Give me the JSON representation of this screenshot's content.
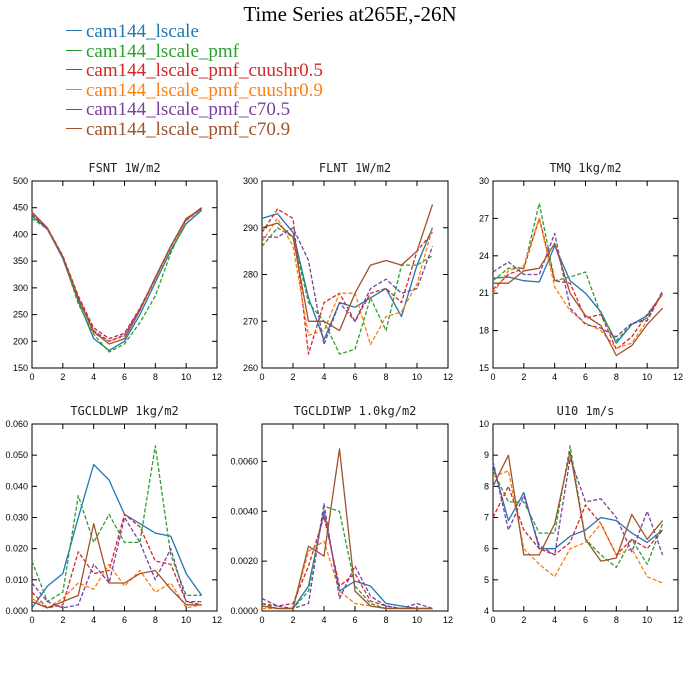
{
  "title": "Time Series at265E,-26N",
  "legend": [
    {
      "label": "cam144_lscale",
      "color": "#1f77b4"
    },
    {
      "label": "cam144_lscale_pmf",
      "color": "#2ca02c"
    },
    {
      "label": "cam144_lscale_pmf_cuushr0.5",
      "color": "#d62728"
    },
    {
      "label": "cam144_lscale_pmf_cuushr0.9",
      "color": "#ff7f0e"
    },
    {
      "label": "cam144_lscale_pmf_c70.5",
      "color": "#7b3fa0"
    },
    {
      "label": "cam144_lscale_pmf_c70.9",
      "color": "#a0522d"
    }
  ],
  "chart_data": [
    {
      "type": "line",
      "title": "FSNT   1W/m2",
      "xlim": [
        0,
        12
      ],
      "ylim": [
        150,
        500
      ],
      "xticks": [
        0,
        2,
        4,
        6,
        8,
        10,
        12
      ],
      "yticks": [
        150,
        200,
        250,
        300,
        350,
        400,
        450,
        500
      ],
      "ytick_labels": [
        "150",
        "200",
        "250",
        "300",
        "350",
        "400",
        "450",
        "500"
      ],
      "x": [
        0,
        1,
        2,
        3,
        4,
        5,
        6,
        7,
        8,
        9,
        10,
        11
      ],
      "series": [
        {
          "name": "cam144_lscale",
          "color": "#1f77b4",
          "dashed": false,
          "values": [
            435,
            410,
            355,
            275,
            205,
            183,
            200,
            250,
            310,
            370,
            420,
            445
          ]
        },
        {
          "name": "cam144_lscale_pmf",
          "color": "#2ca02c",
          "dashed": true,
          "values": [
            430,
            410,
            358,
            270,
            213,
            180,
            195,
            235,
            285,
            365,
            428,
            448
          ]
        },
        {
          "name": "cam144_lscale_pmf_cuushr0.5",
          "color": "#d62728",
          "dashed": true,
          "values": [
            440,
            412,
            360,
            285,
            225,
            205,
            215,
            262,
            318,
            378,
            428,
            450
          ]
        },
        {
          "name": "cam144_lscale_pmf_cuushr0.9",
          "color": "#ff7f0e",
          "dashed": true,
          "values": [
            438,
            410,
            358,
            280,
            215,
            200,
            210,
            258,
            315,
            375,
            425,
            448
          ]
        },
        {
          "name": "cam144_lscale_pmf_c70.5",
          "color": "#7b3fa0",
          "dashed": true,
          "values": [
            437,
            410,
            358,
            282,
            220,
            200,
            212,
            260,
            318,
            378,
            428,
            450
          ]
        },
        {
          "name": "cam144_lscale_pmf_c70.9",
          "color": "#a0522d",
          "dashed": false,
          "values": [
            442,
            412,
            358,
            280,
            218,
            195,
            205,
            258,
            320,
            378,
            430,
            448
          ]
        }
      ]
    },
    {
      "type": "line",
      "title": "FLNT   1W/m2",
      "xlim": [
        0,
        12
      ],
      "ylim": [
        260,
        300
      ],
      "xticks": [
        0,
        2,
        4,
        6,
        8,
        10,
        12
      ],
      "yticks": [
        260,
        270,
        280,
        290,
        300
      ],
      "ytick_labels": [
        "260",
        "270",
        "280",
        "290",
        "300"
      ],
      "x": [
        0,
        1,
        2,
        3,
        4,
        5,
        6,
        7,
        8,
        9,
        10,
        11
      ],
      "series": [
        {
          "name": "cam144_lscale",
          "color": "#1f77b4",
          "dashed": false,
          "values": [
            292,
            293,
            289,
            275,
            266,
            274,
            273,
            275,
            277,
            271,
            282,
            290
          ]
        },
        {
          "name": "cam144_lscale_pmf",
          "color": "#2ca02c",
          "dashed": true,
          "values": [
            286,
            290,
            288,
            274,
            270,
            263,
            264,
            275,
            268,
            282,
            282,
            284
          ]
        },
        {
          "name": "cam144_lscale_pmf_cuushr0.5",
          "color": "#d62728",
          "dashed": true,
          "values": [
            289,
            294,
            292,
            263,
            274,
            276,
            270,
            276,
            277,
            274,
            285,
            289
          ]
        },
        {
          "name": "cam144_lscale_pmf_cuushr0.9",
          "color": "#ff7f0e",
          "dashed": true,
          "values": [
            287,
            292,
            286,
            267,
            268,
            276,
            276,
            265,
            271,
            272,
            278,
            290
          ]
        },
        {
          "name": "cam144_lscale_pmf_c70.5",
          "color": "#7b3fa0",
          "dashed": true,
          "values": [
            288,
            288,
            290,
            283,
            265,
            274,
            270,
            277,
            279,
            276,
            277,
            286
          ]
        },
        {
          "name": "cam144_lscale_pmf_c70.9",
          "color": "#a0522d",
          "dashed": false,
          "values": [
            290,
            291,
            288,
            270,
            270,
            268,
            276,
            282,
            283,
            282,
            285,
            295
          ]
        }
      ]
    },
    {
      "type": "line",
      "title": "TMQ   1kg/m2",
      "xlim": [
        0,
        12
      ],
      "ylim": [
        15,
        30
      ],
      "xticks": [
        0,
        2,
        4,
        6,
        8,
        10,
        12
      ],
      "yticks": [
        15,
        18,
        21,
        24,
        27,
        30
      ],
      "ytick_labels": [
        "15",
        "18",
        "21",
        "24",
        "27",
        "30"
      ],
      "x": [
        0,
        1,
        2,
        3,
        4,
        5,
        6,
        7,
        8,
        9,
        10,
        11
      ],
      "series": [
        {
          "name": "cam144_lscale",
          "color": "#1f77b4",
          "dashed": false,
          "values": [
            22.2,
            22.3,
            22.0,
            21.9,
            24.8,
            22.0,
            21.0,
            19.5,
            17.0,
            18.5,
            19.2,
            21.0
          ]
        },
        {
          "name": "cam144_lscale_pmf",
          "color": "#2ca02c",
          "dashed": true,
          "values": [
            22.0,
            23.0,
            23.0,
            28.2,
            22.0,
            22.3,
            22.7,
            19.3,
            17.2,
            18.5,
            19.0,
            21.0
          ]
        },
        {
          "name": "cam144_lscale_pmf_cuushr0.5",
          "color": "#d62728",
          "dashed": true,
          "values": [
            21.3,
            22.5,
            23.0,
            27.0,
            22.0,
            21.8,
            19.0,
            19.3,
            16.5,
            17.5,
            19.3,
            20.9
          ]
        },
        {
          "name": "cam144_lscale_pmf_cuushr0.9",
          "color": "#ff7f0e",
          "dashed": true,
          "values": [
            21.0,
            22.8,
            23.2,
            27.0,
            21.5,
            19.6,
            18.6,
            18.0,
            16.6,
            17.0,
            18.8,
            21.0
          ]
        },
        {
          "name": "cam144_lscale_pmf_c70.5",
          "color": "#7b3fa0",
          "dashed": true,
          "values": [
            22.7,
            23.5,
            22.5,
            22.5,
            25.8,
            19.8,
            18.5,
            18.2,
            17.5,
            18.6,
            18.8,
            21.2
          ]
        },
        {
          "name": "cam144_lscale_pmf_c70.9",
          "color": "#a0522d",
          "dashed": false,
          "values": [
            21.8,
            21.8,
            22.8,
            23.0,
            25.0,
            21.0,
            19.2,
            18.4,
            16.0,
            16.8,
            18.5,
            19.8
          ]
        }
      ]
    },
    {
      "type": "line",
      "title": "TGCLDLWP   1kg/m2",
      "xlim": [
        0,
        12
      ],
      "ylim": [
        0,
        0.06
      ],
      "xticks": [
        0,
        2,
        4,
        6,
        8,
        10,
        12
      ],
      "yticks": [
        0,
        0.01,
        0.02,
        0.03,
        0.04,
        0.05,
        0.06
      ],
      "ytick_labels": [
        "0.000",
        "0.010",
        "0.020",
        "0.030",
        "0.040",
        "0.050",
        "0.060"
      ],
      "x": [
        0,
        1,
        2,
        3,
        4,
        5,
        6,
        7,
        8,
        9,
        10,
        11
      ],
      "series": [
        {
          "name": "cam144_lscale",
          "color": "#1f77b4",
          "dashed": false,
          "values": [
            0.001,
            0.008,
            0.012,
            0.03,
            0.047,
            0.042,
            0.031,
            0.028,
            0.025,
            0.024,
            0.012,
            0.005
          ]
        },
        {
          "name": "cam144_lscale_pmf",
          "color": "#2ca02c",
          "dashed": true,
          "values": [
            0.016,
            0.003,
            0.006,
            0.037,
            0.022,
            0.031,
            0.022,
            0.022,
            0.053,
            0.018,
            0.005,
            0.005
          ]
        },
        {
          "name": "cam144_lscale_pmf_cuushr0.5",
          "color": "#d62728",
          "dashed": true,
          "values": [
            0.006,
            0.001,
            0.002,
            0.019,
            0.012,
            0.013,
            0.031,
            0.027,
            0.016,
            0.015,
            0.003,
            0.003
          ]
        },
        {
          "name": "cam144_lscale_pmf_cuushr0.9",
          "color": "#ff7f0e",
          "dashed": true,
          "values": [
            0.004,
            0.001,
            0.004,
            0.009,
            0.007,
            0.015,
            0.008,
            0.013,
            0.006,
            0.009,
            0.001,
            0.002
          ]
        },
        {
          "name": "cam144_lscale_pmf_c70.5",
          "color": "#7b3fa0",
          "dashed": true,
          "values": [
            0.009,
            0.003,
            0.001,
            0.002,
            0.015,
            0.009,
            0.03,
            0.022,
            0.01,
            0.02,
            0.003,
            0.002
          ]
        },
        {
          "name": "cam144_lscale_pmf_c70.9",
          "color": "#a0522d",
          "dashed": false,
          "values": [
            0.003,
            0.001,
            0.003,
            0.005,
            0.028,
            0.009,
            0.009,
            0.012,
            0.013,
            0.007,
            0.002,
            0.002
          ]
        }
      ]
    },
    {
      "type": "line",
      "title": "TGCLDIWP   1.0kg/m2",
      "xlim": [
        0,
        12
      ],
      "ylim": [
        0,
        0.0075
      ],
      "xticks": [
        0,
        2,
        4,
        6,
        8,
        10,
        12
      ],
      "yticks": [
        0,
        0.002,
        0.004,
        0.006
      ],
      "ytick_labels": [
        "0.0000",
        "0.0020",
        "0.0040",
        "0.0060"
      ],
      "x": [
        0,
        1,
        2,
        3,
        4,
        5,
        6,
        7,
        8,
        9,
        10,
        11
      ],
      "series": [
        {
          "name": "cam144_lscale",
          "color": "#1f77b4",
          "dashed": false,
          "values": [
            0.0002,
            0.0001,
            0.0001,
            0.001,
            0.004,
            0.0008,
            0.0012,
            0.001,
            0.0003,
            0.0002,
            0.0001,
            0.0001
          ]
        },
        {
          "name": "cam144_lscale_pmf",
          "color": "#2ca02c",
          "dashed": true,
          "values": [
            0.0003,
            0.0001,
            0.0001,
            0.0008,
            0.0042,
            0.004,
            0.001,
            0.0003,
            0.0001,
            0.0001,
            0.0001,
            0.0001
          ]
        },
        {
          "name": "cam144_lscale_pmf_cuushr0.5",
          "color": "#d62728",
          "dashed": true,
          "values": [
            0.0003,
            0.0002,
            0.0003,
            0.0018,
            0.0038,
            0.001,
            0.0015,
            0.0004,
            0.0002,
            0.0001,
            0.0001,
            0.0001
          ]
        },
        {
          "name": "cam144_lscale_pmf_cuushr0.9",
          "color": "#ff7f0e",
          "dashed": true,
          "values": [
            0.0001,
            0.0001,
            0.0001,
            0.0024,
            0.0028,
            0.0008,
            0.0003,
            0.0002,
            0.0001,
            0.0001,
            0.0001,
            0.0001
          ]
        },
        {
          "name": "cam144_lscale_pmf_c70.5",
          "color": "#7b3fa0",
          "dashed": true,
          "values": [
            0.0005,
            0.0002,
            0.0001,
            0.0003,
            0.0043,
            0.0005,
            0.0018,
            0.0006,
            0.0002,
            0.0001,
            0.0003,
            0.0001
          ]
        },
        {
          "name": "cam144_lscale_pmf_c70.9",
          "color": "#a0522d",
          "dashed": false,
          "values": [
            0.0002,
            0.0001,
            0.0001,
            0.0026,
            0.0022,
            0.0065,
            0.0008,
            0.0002,
            0.0001,
            0.0001,
            0.0001,
            0.0001
          ]
        }
      ]
    },
    {
      "type": "line",
      "title": "U10   1m/s",
      "xlim": [
        0,
        12
      ],
      "ylim": [
        4,
        10
      ],
      "xticks": [
        0,
        2,
        4,
        6,
        8,
        10,
        12
      ],
      "yticks": [
        4,
        5,
        6,
        7,
        8,
        9,
        10
      ],
      "ytick_labels": [
        "4",
        "5",
        "6",
        "7",
        "8",
        "9",
        "10"
      ],
      "x": [
        0,
        1,
        2,
        3,
        4,
        5,
        6,
        7,
        8,
        9,
        10,
        11
      ],
      "series": [
        {
          "name": "cam144_lscale",
          "color": "#1f77b4",
          "dashed": false,
          "values": [
            8.7,
            6.9,
            7.8,
            6.0,
            6.0,
            6.4,
            6.6,
            7.0,
            6.9,
            6.5,
            6.2,
            6.6
          ]
        },
        {
          "name": "cam144_lscale_pmf",
          "color": "#2ca02c",
          "dashed": true,
          "values": [
            8.5,
            7.5,
            7.5,
            6.5,
            6.5,
            9.3,
            6.3,
            5.8,
            5.4,
            6.3,
            5.5,
            6.8
          ]
        },
        {
          "name": "cam144_lscale_pmf_cuushr0.5",
          "color": "#d62728",
          "dashed": true,
          "values": [
            7.0,
            8.0,
            6.6,
            6.0,
            5.8,
            6.2,
            7.4,
            6.8,
            5.8,
            6.3,
            6.0,
            6.6
          ]
        },
        {
          "name": "cam144_lscale_pmf_cuushr0.9",
          "color": "#ff7f0e",
          "dashed": true,
          "values": [
            8.3,
            8.5,
            6.0,
            5.5,
            5.1,
            6.0,
            6.2,
            6.8,
            5.8,
            6.0,
            5.1,
            4.9
          ]
        },
        {
          "name": "cam144_lscale_pmf_c70.5",
          "color": "#7b3fa0",
          "dashed": true,
          "values": [
            8.8,
            6.6,
            7.7,
            6.1,
            5.8,
            8.9,
            7.5,
            7.6,
            7.0,
            5.9,
            7.2,
            5.8
          ]
        },
        {
          "name": "cam144_lscale_pmf_c70.9",
          "color": "#a0522d",
          "dashed": false,
          "values": [
            8.0,
            9.0,
            5.8,
            5.8,
            6.8,
            9.1,
            6.3,
            5.6,
            5.7,
            7.1,
            6.3,
            6.9
          ]
        }
      ]
    }
  ]
}
